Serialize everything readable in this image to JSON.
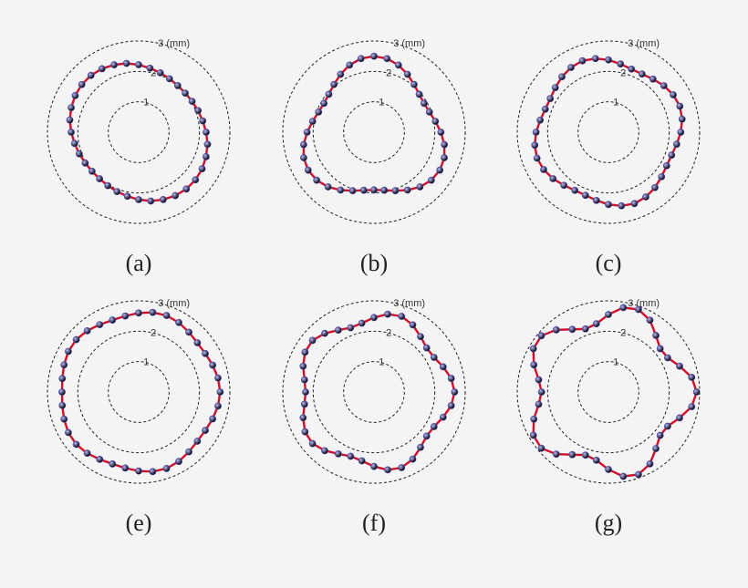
{
  "chart_data": [
    {
      "type": "polar",
      "title": "(a)",
      "rlim": [
        0,
        3
      ],
      "rticks": [
        1,
        2,
        {
          "value": 3,
          "label": "3 (mm)"
        }
      ],
      "line_color": "#d0102a",
      "marker_color": "#4b4aa8",
      "x": [
        0,
        10,
        20,
        30,
        40,
        50,
        60,
        70,
        80,
        90,
        100,
        110,
        120,
        130,
        140,
        150,
        160,
        170,
        180,
        190,
        200,
        210,
        220,
        230,
        240,
        250,
        260,
        270,
        280,
        290,
        300,
        310,
        320,
        330,
        340,
        350
      ],
      "values": [
        2.22,
        2.14,
        2.08,
        2.03,
        2.0,
        2.0,
        2.03,
        2.08,
        2.14,
        2.22,
        2.3,
        2.36,
        2.41,
        2.44,
        2.44,
        2.41,
        2.36,
        2.3,
        2.22,
        2.14,
        2.08,
        2.03,
        2.0,
        2.0,
        2.03,
        2.08,
        2.14,
        2.22,
        2.3,
        2.36,
        2.41,
        2.44,
        2.44,
        2.41,
        2.36,
        2.3
      ]
    },
    {
      "type": "polar",
      "title": "(b)",
      "rlim": [
        0,
        3
      ],
      "rticks": [
        1,
        2,
        {
          "value": 3,
          "label": "3 (mm)"
        }
      ],
      "line_color": "#d0102a",
      "marker_color": "#4b4aa8",
      "x": [
        0,
        10,
        20,
        30,
        40,
        50,
        60,
        70,
        80,
        90,
        100,
        110,
        120,
        130,
        140,
        150,
        160,
        170,
        180,
        190,
        200,
        210,
        220,
        230,
        240,
        250,
        260,
        270,
        280,
        290,
        300,
        310,
        320,
        330,
        340,
        350
      ],
      "values": [
        2.2,
        2.05,
        1.94,
        1.9,
        1.94,
        2.05,
        2.2,
        2.35,
        2.46,
        2.5,
        2.46,
        2.35,
        2.2,
        2.05,
        1.94,
        1.9,
        1.94,
        2.05,
        2.2,
        2.35,
        2.46,
        2.5,
        2.46,
        2.35,
        2.2,
        2.05,
        1.94,
        1.9,
        1.94,
        2.05,
        2.2,
        2.35,
        2.46,
        2.5,
        2.46,
        2.35
      ]
    },
    {
      "type": "polar",
      "title": "(c)",
      "rlim": [
        0,
        3
      ],
      "rticks": [
        1,
        2,
        {
          "value": 3,
          "label": "3 (mm)"
        }
      ],
      "line_color": "#d0102a",
      "marker_color": "#4b4aa8",
      "x": [
        0,
        10,
        20,
        30,
        40,
        50,
        60,
        70,
        80,
        90,
        100,
        110,
        120,
        130,
        140,
        150,
        160,
        170,
        180,
        190,
        200,
        210,
        220,
        230,
        240,
        250,
        260,
        270,
        280,
        290,
        300,
        310,
        320,
        330,
        340,
        350
      ],
      "values": [
        2.38,
        2.46,
        2.5,
        2.46,
        2.38,
        2.28,
        2.21,
        2.21,
        2.28,
        2.38,
        2.46,
        2.5,
        2.46,
        2.38,
        2.28,
        2.21,
        2.21,
        2.28,
        2.38,
        2.46,
        2.5,
        2.46,
        2.38,
        2.28,
        2.21,
        2.21,
        2.28,
        2.38,
        2.46,
        2.5,
        2.46,
        2.38,
        2.28,
        2.21,
        2.21,
        2.28
      ]
    },
    {
      "type": "polar",
      "title": "(e)",
      "rlim": [
        0,
        3
      ],
      "rticks": [
        1,
        2,
        {
          "value": 3,
          "label": "3 (mm)"
        }
      ],
      "line_color": "#d0102a",
      "marker_color": "#4b4aa8",
      "x": [
        0,
        10,
        20,
        30,
        40,
        50,
        60,
        70,
        80,
        90,
        100,
        110,
        120,
        130,
        140,
        150,
        160,
        170,
        180,
        190,
        200,
        210,
        220,
        230,
        240,
        250,
        260,
        270,
        280,
        290,
        300,
        310,
        320,
        330,
        340,
        350
      ],
      "values": [
        2.68,
        2.65,
        2.59,
        2.53,
        2.52,
        2.57,
        2.64,
        2.68,
        2.66,
        2.6,
        2.54,
        2.52,
        2.56,
        2.63,
        2.68,
        2.67,
        2.61,
        2.55,
        2.52,
        2.55,
        2.61,
        2.67,
        2.68,
        2.63,
        2.56,
        2.52,
        2.54,
        2.6,
        2.66,
        2.68,
        2.64,
        2.57,
        2.52,
        2.53,
        2.59,
        2.65
      ]
    },
    {
      "type": "polar",
      "title": "(f)",
      "rlim": [
        0,
        3
      ],
      "rticks": [
        1,
        2,
        {
          "value": 3,
          "label": "3 (mm)"
        }
      ],
      "line_color": "#d0102a",
      "marker_color": "#4b4aa8",
      "x": [
        0,
        10,
        20,
        30,
        40,
        50,
        60,
        70,
        80,
        90,
        100,
        110,
        120,
        130,
        140,
        150,
        160,
        170,
        180,
        190,
        200,
        210,
        220,
        230,
        240,
        250,
        260,
        270,
        280,
        290,
        300,
        310,
        320,
        330,
        340,
        350
      ],
      "values": [
        2.65,
        2.58,
        2.42,
        2.28,
        2.26,
        2.38,
        2.55,
        2.65,
        2.6,
        2.45,
        2.3,
        2.25,
        2.35,
        2.52,
        2.64,
        2.62,
        2.48,
        2.32,
        2.25,
        2.32,
        2.48,
        2.62,
        2.64,
        2.52,
        2.35,
        2.25,
        2.3,
        2.45,
        2.6,
        2.65,
        2.55,
        2.38,
        2.26,
        2.28,
        2.42,
        2.58
      ]
    },
    {
      "type": "polar",
      "title": "(g)",
      "rlim": [
        0,
        3
      ],
      "rticks": [
        1,
        2,
        {
          "value": 3,
          "label": "3 (mm)"
        }
      ],
      "line_color": "#d0102a",
      "marker_color": "#4b4aa8",
      "x": [
        0,
        10,
        20,
        30,
        40,
        50,
        60,
        70,
        80,
        90,
        100,
        110,
        120,
        130,
        140,
        150,
        160,
        170,
        180,
        190,
        200,
        210,
        220,
        230,
        240,
        250,
        260,
        270,
        280,
        290,
        300,
        310,
        320,
        330,
        340,
        350
      ],
      "values": [
        2.9,
        2.78,
        2.49,
        2.25,
        2.22,
        2.43,
        2.73,
        2.89,
        2.82,
        2.55,
        2.28,
        2.21,
        2.38,
        2.67,
        2.88,
        2.85,
        2.61,
        2.33,
        2.2,
        2.33,
        2.61,
        2.85,
        2.88,
        2.67,
        2.38,
        2.21,
        2.28,
        2.55,
        2.82,
        2.89,
        2.73,
        2.43,
        2.22,
        2.25,
        2.49,
        2.78
      ]
    }
  ]
}
